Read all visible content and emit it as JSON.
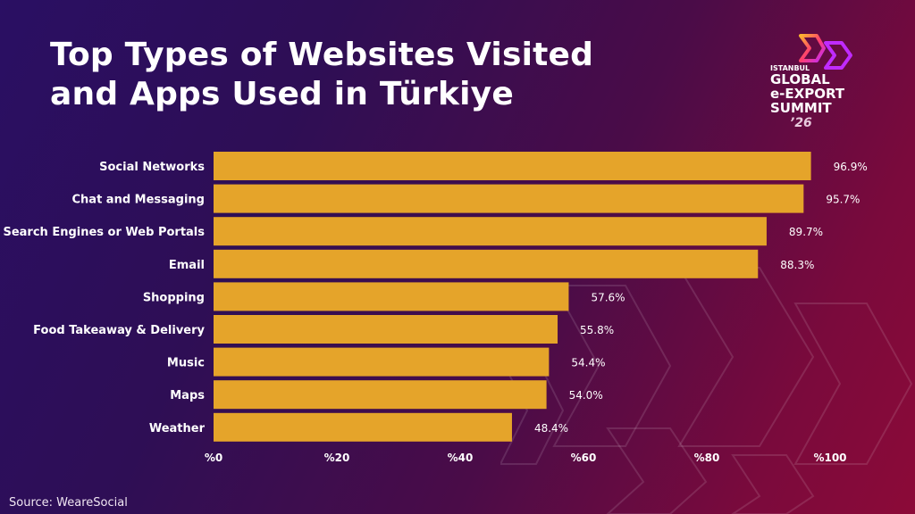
{
  "title": {
    "line1": "Top Types of Websites Visited",
    "line2": "and Apps Used in Türkiye"
  },
  "logo": {
    "line1": "ISTANBUL",
    "line2": "GLOBAL",
    "line3": "e-EXPORT",
    "line4": "SUMMIT",
    "year": "’26"
  },
  "colors": {
    "bar": "#e5a42a",
    "background_start": "#2a0f63",
    "background_end": "#8c0a38",
    "logo_accent": "#ff3d6e"
  },
  "source": "Source: WeareSocial",
  "chart_data": {
    "type": "bar",
    "orientation": "horizontal",
    "categories": [
      "Social Networks",
      "Chat and Messaging",
      "Search Engines or Web Portals",
      "Email",
      "Shopping",
      "Food Takeaway & Delivery",
      "Music",
      "Maps",
      "Weather"
    ],
    "values": [
      96.9,
      95.7,
      89.7,
      88.3,
      57.6,
      55.8,
      54.4,
      54.0,
      48.4
    ],
    "value_labels": [
      "96.9%",
      "95.7%",
      "89.7%",
      "88.3%",
      "57.6%",
      "55.8%",
      "54.4%",
      "54.0%",
      "48.4%"
    ],
    "xlim": [
      0,
      100
    ],
    "xticks": [
      0,
      20,
      40,
      60,
      80,
      100
    ],
    "xtick_labels": [
      "%0",
      "%20",
      "%40",
      "%60",
      "%80",
      "%100"
    ],
    "grid": false
  }
}
